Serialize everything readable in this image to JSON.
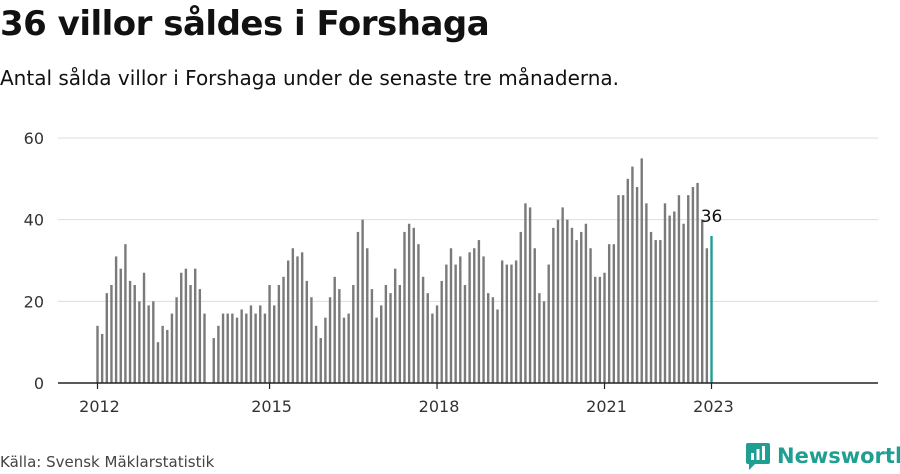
{
  "title": "36 villor såldes i Forshaga",
  "subtitle": "Antal sålda villor i Forshaga under de senaste tre månaderna.",
  "source": "Källa: Svensk Mäklarstatistik",
  "brand": {
    "name": "Newsworthy",
    "icon": "newsworthy-logo-icon",
    "color": "#1f9e92"
  },
  "chart_data": {
    "type": "bar",
    "ylim": [
      0,
      60
    ],
    "yticks": [
      "0",
      "20",
      "40",
      "60"
    ],
    "x_tick_labels": [
      "2012",
      "2015",
      "2018",
      "2021",
      "2023"
    ],
    "grid": true,
    "bar_color": "#7a7a7a",
    "highlight_color": "#1f9e92",
    "last_value_label": "36",
    "first_period": "2012-01",
    "gap_after_period": "2013-12",
    "values": [
      14,
      12,
      22,
      24,
      31,
      28,
      34,
      25,
      24,
      20,
      27,
      19,
      20,
      10,
      14,
      13,
      17,
      21,
      27,
      28,
      24,
      28,
      23,
      17,
      11,
      14,
      17,
      17,
      17,
      16,
      18,
      17,
      19,
      17,
      19,
      17,
      24,
      19,
      24,
      26,
      30,
      33,
      31,
      32,
      25,
      21,
      14,
      11,
      16,
      21,
      26,
      23,
      16,
      17,
      24,
      37,
      40,
      33,
      23,
      16,
      19,
      24,
      22,
      28,
      24,
      37,
      39,
      38,
      34,
      26,
      22,
      17,
      19,
      25,
      29,
      33,
      29,
      31,
      24,
      32,
      33,
      35,
      31,
      22,
      21,
      18,
      30,
      29,
      29,
      30,
      37,
      44,
      43,
      33,
      22,
      20,
      29,
      38,
      40,
      43,
      40,
      38,
      35,
      37,
      39,
      33,
      26,
      26,
      27,
      34,
      34,
      46,
      46,
      50,
      53,
      48,
      55,
      44,
      37,
      35,
      35,
      44,
      41,
      42,
      46,
      39,
      46,
      48,
      49,
      40,
      33,
      36
    ]
  }
}
